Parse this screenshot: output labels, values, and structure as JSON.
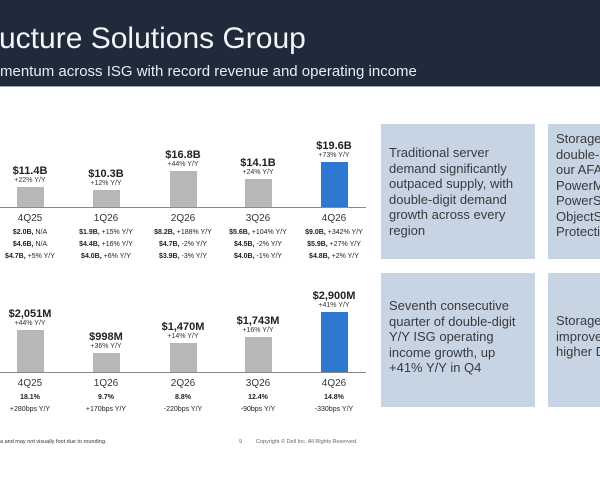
{
  "header": {
    "title": "ucture Solutions Group",
    "subtitle": "mentum across ISG with record revenue and operating income"
  },
  "colors": {
    "header_bg": "#1f2b3b",
    "bar": "#b7b7b7",
    "highlight_bar": "#2e78d2",
    "box_bg": "#c7d4e4"
  },
  "chart_data": [
    {
      "type": "bar",
      "categories": [
        "4Q25",
        "1Q26",
        "2Q26",
        "3Q26",
        "4Q26"
      ],
      "values": [
        11.4,
        10.3,
        16.8,
        14.1,
        19.6
      ],
      "value_labels": [
        "$11.4B",
        "$10.3B",
        "$16.8B",
        "$14.1B",
        "$19.6B"
      ],
      "yy_labels": [
        "+22% Y/Y",
        "+12% Y/Y",
        "+44% Y/Y",
        "+24% Y/Y",
        "+73% Y/Y"
      ],
      "highlight": "4Q26",
      "rows": [
        [
          [
            "$2.0B,",
            "N/A"
          ],
          [
            "$1.9B,",
            "+15% Y/Y"
          ],
          [
            "$8.2B,",
            "+188% Y/Y"
          ],
          [
            "$5.6B,",
            "+104% Y/Y"
          ],
          [
            "$9.0B,",
            "+342% Y/Y"
          ]
        ],
        [
          [
            "$4.6B,",
            "N/A"
          ],
          [
            "$4.4B,",
            "+16% Y/Y"
          ],
          [
            "$4.7B,",
            "-2% Y/Y"
          ],
          [
            "$4.5B,",
            "-2% Y/Y"
          ],
          [
            "$5.9B,",
            "+27% Y/Y"
          ]
        ],
        [
          [
            "$4.7B,",
            "+5% Y/Y"
          ],
          [
            "$4.0B,",
            "+6% Y/Y"
          ],
          [
            "$3.9B,",
            "-3% Y/Y"
          ],
          [
            "$4.0B,",
            "-1% Y/Y"
          ],
          [
            "$4.8B,",
            "+2% Y/Y"
          ]
        ]
      ]
    },
    {
      "type": "bar",
      "categories": [
        "4Q25",
        "1Q26",
        "2Q26",
        "3Q26",
        "4Q26"
      ],
      "values": [
        2051,
        998,
        1470,
        1743,
        2900
      ],
      "value_labels": [
        "$2,051M",
        "$998M",
        "$1,470M",
        "$1,743M",
        "$2,900M"
      ],
      "yy_labels": [
        "+44% Y/Y",
        "+36% Y/Y",
        "+14% Y/Y",
        "+16% Y/Y",
        "+41% Y/Y"
      ],
      "highlight": "4Q26",
      "margins": [
        "18.1%",
        "9.7%",
        "8.8%",
        "12.4%",
        "14.8%"
      ],
      "margin_changes": [
        "+280bps Y/Y",
        "+170bps Y/Y",
        "-220bps Y/Y",
        "-90bps Y/Y",
        "-330bps Y/Y"
      ]
    }
  ],
  "boxes": [
    {
      "lines": [
        "Traditional server",
        "demand significantly",
        "outpaced supply, with",
        "double-digit demand",
        "growth across every",
        "region"
      ]
    },
    {
      "lines": [
        "Storage",
        "double-",
        "our AFA",
        "PowerM",
        "PowerS",
        "ObjectS",
        "Protecti"
      ]
    },
    {
      "lines": [
        "Seventh consecutive",
        "quarter of double-digit",
        "Y/Y ISG operating",
        "income growth, up",
        "+41% Y/Y in Q4"
      ]
    },
    {
      "lines": [
        "Storage",
        "improve",
        "higher D"
      ]
    }
  ],
  "footer": {
    "footnote": "a and may not visually foot due to rounding.",
    "page": "9",
    "copyright": "Copyright © Dell Inc. All Rights Reserved."
  }
}
